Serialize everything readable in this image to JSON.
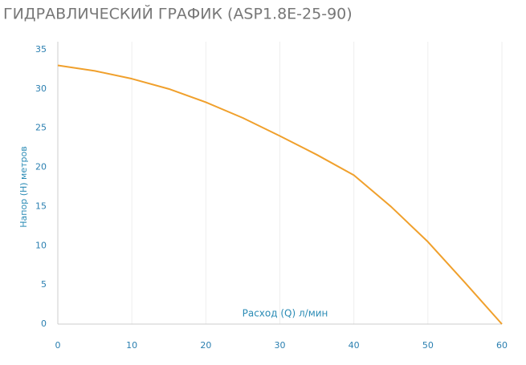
{
  "chart_data": {
    "type": "line",
    "title": "ГИДРАВЛИЧЕСКИЙ ГРАФИК (ASP1.8E-25-90)",
    "x_label": "Расход (Q) л/мин",
    "y_label": "Напор (H) метров",
    "x": [
      0,
      5,
      10,
      15,
      20,
      25,
      30,
      35,
      40,
      45,
      50,
      55,
      60
    ],
    "series": [
      {
        "color": "#f0a02c",
        "values": [
          33,
          32.3,
          31.3,
          30,
          28.3,
          26.3,
          24,
          21.6,
          19,
          15,
          10.5,
          5.3,
          0
        ]
      }
    ],
    "xlim": [
      0,
      60
    ],
    "xticks": [
      0,
      10,
      20,
      30,
      40,
      50,
      60
    ],
    "ylim": [
      0,
      35
    ],
    "yticks": [
      0,
      5,
      10,
      15,
      20,
      25,
      30,
      35
    ],
    "grid": true
  }
}
